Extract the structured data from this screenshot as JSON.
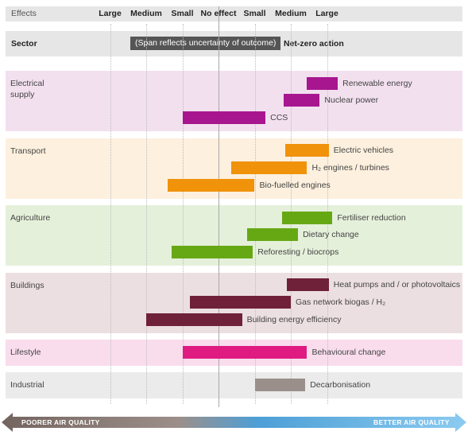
{
  "header": {
    "effects_label": "Effects",
    "scale_labels": [
      "Large",
      "Medium",
      "Small",
      "No effect",
      "Small",
      "Medium",
      "Large"
    ],
    "sector_label": "Sector",
    "span_note": "(Span reflects uncertainty of outcome)",
    "action_label": "Net-zero action"
  },
  "footer": {
    "left_label": "POORER AIR QUALITY",
    "right_label": "BETTER AIR QUALITY"
  },
  "colors": {
    "electrical": "#a8168f",
    "transport": "#f0920a",
    "agriculture": "#66a814",
    "buildings": "#6e2138",
    "lifestyle": "#df1b82",
    "industrial": "#9b8f8c"
  },
  "chart_data": {
    "type": "bar",
    "x_scale": [
      "Large",
      "Medium",
      "Small",
      "No effect",
      "Small",
      "Medium",
      "Large"
    ],
    "x_positions": [
      -3,
      -2,
      -1,
      0,
      1,
      2,
      3
    ],
    "sectors": [
      {
        "name": "Electrical supply",
        "color": "#a8168f",
        "bg": "#f2e0ef",
        "actions": [
          {
            "label": "Renewable energy",
            "start": 2.45,
            "end": 3.3
          },
          {
            "label": "Nuclear power",
            "start": 1.8,
            "end": 2.8
          },
          {
            "label": "CCS",
            "start": -1.0,
            "end": 1.3
          }
        ]
      },
      {
        "name": "Transport",
        "color": "#f0920a",
        "bg": "#fdf0de",
        "actions": [
          {
            "label": "Electric vehicles",
            "start": 1.85,
            "end": 3.05
          },
          {
            "label": "H₂ engines / turbines",
            "start": 0.35,
            "end": 2.45
          },
          {
            "label": "Bio-fuelled engines",
            "start": -1.4,
            "end": 1.0
          }
        ]
      },
      {
        "name": "Agriculture",
        "color": "#66a814",
        "bg": "#e5f0da",
        "actions": [
          {
            "label": "Fertiliser reduction",
            "start": 1.75,
            "end": 3.15
          },
          {
            "label": "Dietary change",
            "start": 0.8,
            "end": 2.2
          },
          {
            "label": "Reforesting / biocrops",
            "start": -1.3,
            "end": 0.95
          }
        ]
      },
      {
        "name": "Buildings",
        "color": "#6e2138",
        "bg": "#ecdfe2",
        "actions": [
          {
            "label": "Heat pumps and / or photovoltaics",
            "start": 1.9,
            "end": 3.05
          },
          {
            "label": "Gas network biogas / H₂",
            "start": -0.8,
            "end": 2.0
          },
          {
            "label": "Building energy efficiency",
            "start": -2.0,
            "end": 0.65
          }
        ]
      },
      {
        "name": "Lifestyle",
        "color": "#df1b82",
        "bg": "#f9dded",
        "actions": [
          {
            "label": "Behavioural change",
            "start": -1.0,
            "end": 2.45
          }
        ]
      },
      {
        "name": "Industrial",
        "color": "#9b8f8c",
        "bg": "#ebebeb",
        "actions": [
          {
            "label": "Decarbonisation",
            "start": 1.0,
            "end": 2.4
          }
        ]
      }
    ]
  }
}
